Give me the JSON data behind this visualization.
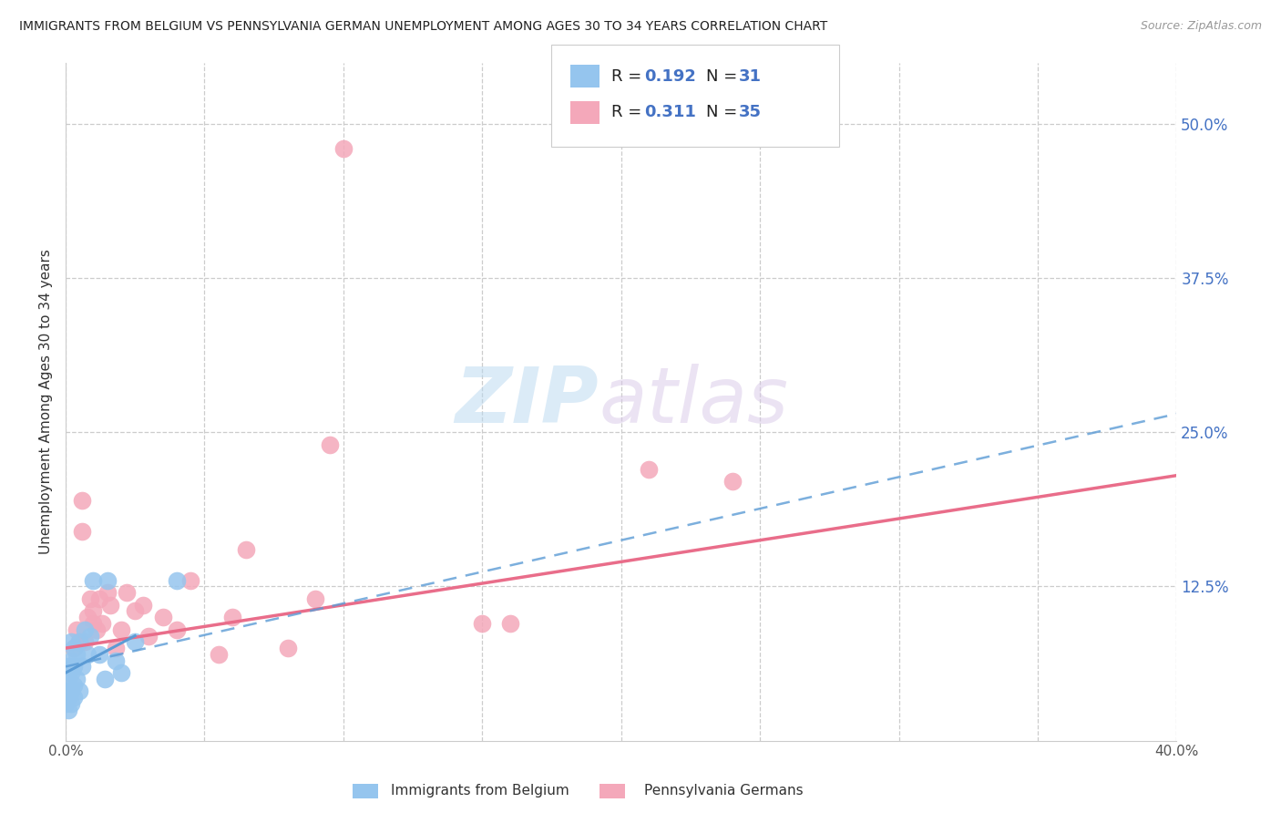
{
  "title": "IMMIGRANTS FROM BELGIUM VS PENNSYLVANIA GERMAN UNEMPLOYMENT AMONG AGES 30 TO 34 YEARS CORRELATION CHART",
  "source": "Source: ZipAtlas.com",
  "ylabel": "Unemployment Among Ages 30 to 34 years",
  "right_yticks": [
    "50.0%",
    "37.5%",
    "25.0%",
    "12.5%"
  ],
  "right_ytick_vals": [
    0.5,
    0.375,
    0.25,
    0.125
  ],
  "watermark_zip": "ZIP",
  "watermark_atlas": "atlas",
  "legend_r1": "R = 0.192",
  "legend_n1": "N = 31",
  "legend_r2": "R = 0.311",
  "legend_n2": "N = 35",
  "color_blue": "#95C5EE",
  "color_pink": "#F4A8BA",
  "color_blue_line": "#5B9BD5",
  "color_pink_line": "#E96D8A",
  "color_blue_text": "#4472C4",
  "label1": "Immigrants from Belgium",
  "label2": "Pennsylvania Germans",
  "blue_x": [
    0.0,
    0.0,
    0.001,
    0.001,
    0.001,
    0.001,
    0.002,
    0.002,
    0.002,
    0.002,
    0.002,
    0.003,
    0.003,
    0.003,
    0.003,
    0.004,
    0.004,
    0.005,
    0.005,
    0.006,
    0.007,
    0.008,
    0.009,
    0.01,
    0.012,
    0.014,
    0.015,
    0.018,
    0.02,
    0.025,
    0.04
  ],
  "blue_y": [
    0.03,
    0.04,
    0.025,
    0.035,
    0.05,
    0.06,
    0.03,
    0.04,
    0.055,
    0.065,
    0.08,
    0.035,
    0.045,
    0.06,
    0.075,
    0.05,
    0.07,
    0.04,
    0.08,
    0.06,
    0.09,
    0.07,
    0.085,
    0.13,
    0.07,
    0.05,
    0.13,
    0.065,
    0.055,
    0.08,
    0.13
  ],
  "pink_x": [
    0.003,
    0.004,
    0.005,
    0.006,
    0.006,
    0.007,
    0.008,
    0.009,
    0.01,
    0.01,
    0.011,
    0.012,
    0.013,
    0.015,
    0.016,
    0.018,
    0.02,
    0.022,
    0.025,
    0.028,
    0.03,
    0.035,
    0.04,
    0.045,
    0.055,
    0.06,
    0.065,
    0.08,
    0.09,
    0.095,
    0.15,
    0.16,
    0.21,
    0.24,
    0.1
  ],
  "pink_y": [
    0.075,
    0.09,
    0.08,
    0.195,
    0.17,
    0.08,
    0.1,
    0.115,
    0.095,
    0.105,
    0.09,
    0.115,
    0.095,
    0.12,
    0.11,
    0.075,
    0.09,
    0.12,
    0.105,
    0.11,
    0.085,
    0.1,
    0.09,
    0.13,
    0.07,
    0.1,
    0.155,
    0.075,
    0.115,
    0.24,
    0.095,
    0.095,
    0.22,
    0.21,
    0.48
  ],
  "xlim": [
    0.0,
    0.4
  ],
  "ylim": [
    0.0,
    0.55
  ],
  "blue_trendline_x": [
    0.0,
    0.025
  ],
  "blue_trendline_y": [
    0.055,
    0.085
  ],
  "pink_trendline_x": [
    0.0,
    0.4
  ],
  "pink_trendline_y": [
    0.075,
    0.215
  ],
  "blue_dash_trendline_x": [
    0.0,
    0.4
  ],
  "blue_dash_trendline_y": [
    0.06,
    0.265
  ]
}
